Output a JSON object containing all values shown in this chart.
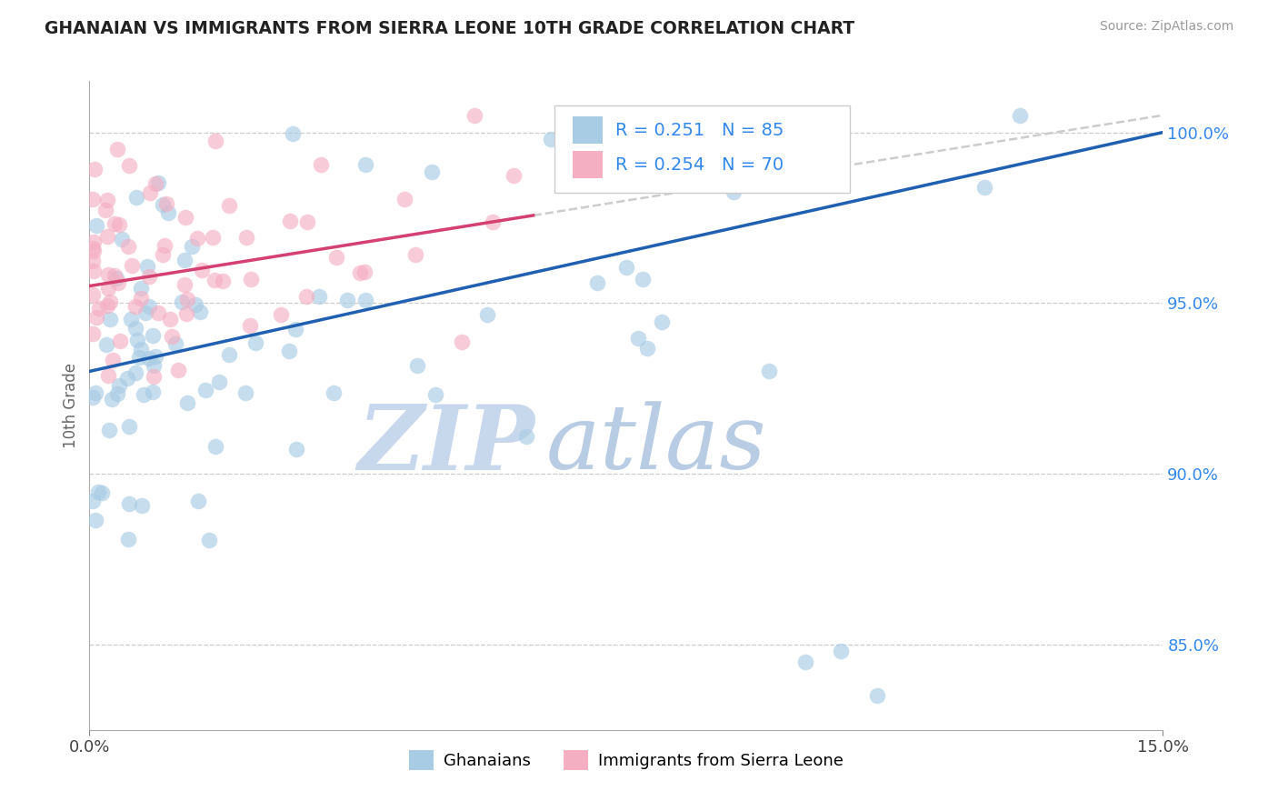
{
  "title": "GHANAIAN VS IMMIGRANTS FROM SIERRA LEONE 10TH GRADE CORRELATION CHART",
  "source_text": "Source: ZipAtlas.com",
  "ylabel": "10th Grade",
  "xmin": 0.0,
  "xmax": 15.0,
  "ymin": 82.5,
  "ymax": 101.5,
  "legend_r1": "R = 0.251",
  "legend_n1": "N = 85",
  "legend_r2": "R = 0.254",
  "legend_n2": "N = 70",
  "blue_color": "#a8cce4",
  "pink_color": "#f4afc3",
  "blue_line_color": "#2060b0",
  "pink_line_color": "#d44070",
  "dashed_line_color": "#cccccc",
  "yticks": [
    85.0,
    90.0,
    95.0,
    100.0
  ],
  "ytick_labels": [
    "85.0%",
    "90.0%",
    "95.0%",
    "100.0%"
  ],
  "tick_color": "#3388ee",
  "title_color": "#222222",
  "source_color": "#999999",
  "watermark_zip_color": "#c8d8ec",
  "watermark_atlas_color": "#b8cce4"
}
